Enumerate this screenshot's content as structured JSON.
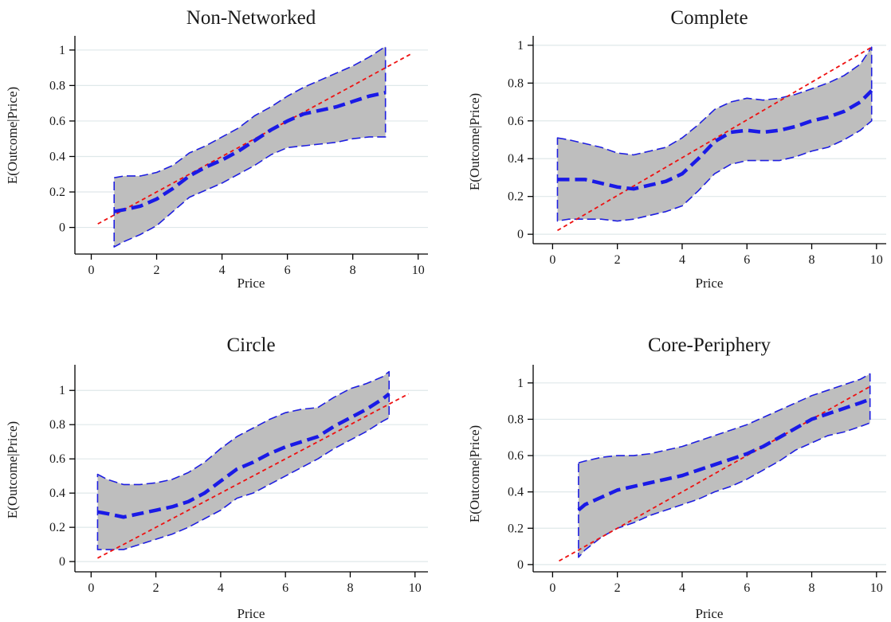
{
  "colors": {
    "band_fill": "#bebebe",
    "band_edge": "#1f1fe0",
    "fit_line": "#1a1ae6",
    "reference_line": "#ee1111",
    "gridline": "#dfe8ea",
    "axis": "#000000"
  },
  "chart_data": [
    {
      "type": "line",
      "title": "Non-Networked",
      "xlabel": "Price",
      "ylabel": "E(Outcome|Price)",
      "xlim": [
        -0.5,
        10.3
      ],
      "ylim": [
        -0.15,
        1.08
      ],
      "xticks": [
        0,
        2,
        4,
        6,
        8,
        10
      ],
      "yticks": [
        0,
        0.2,
        0.4,
        0.6,
        0.8,
        1
      ],
      "grid": true,
      "reference_line": {
        "x": [
          0.2,
          9.8
        ],
        "y": [
          0.02,
          0.98
        ]
      },
      "x": [
        0.7,
        1,
        1.5,
        2,
        2.5,
        3,
        3.5,
        4,
        4.5,
        5,
        5.5,
        6,
        6.5,
        7,
        7.5,
        8,
        8.5,
        9
      ],
      "fit": [
        0.09,
        0.1,
        0.12,
        0.16,
        0.22,
        0.29,
        0.34,
        0.38,
        0.43,
        0.49,
        0.55,
        0.6,
        0.64,
        0.66,
        0.68,
        0.71,
        0.74,
        0.76
      ],
      "lower": [
        -0.11,
        -0.08,
        -0.04,
        0.01,
        0.09,
        0.17,
        0.21,
        0.25,
        0.3,
        0.35,
        0.41,
        0.45,
        0.46,
        0.47,
        0.48,
        0.5,
        0.51,
        0.51
      ],
      "upper": [
        0.28,
        0.29,
        0.29,
        0.31,
        0.35,
        0.42,
        0.46,
        0.51,
        0.56,
        0.63,
        0.68,
        0.74,
        0.79,
        0.83,
        0.87,
        0.91,
        0.96,
        1.02
      ]
    },
    {
      "type": "line",
      "title": "Complete",
      "xlabel": "Price",
      "ylabel": "E(Outcome|Price)",
      "xlim": [
        -0.6,
        10.3
      ],
      "ylim": [
        -0.05,
        1.05
      ],
      "xticks": [
        0,
        2,
        4,
        6,
        8,
        10
      ],
      "yticks": [
        0,
        0.2,
        0.4,
        0.6,
        0.8,
        1
      ],
      "grid": true,
      "reference_line": {
        "x": [
          0.15,
          9.85
        ],
        "y": [
          0.02,
          0.99
        ]
      },
      "x": [
        0.15,
        0.5,
        1,
        1.5,
        2,
        2.5,
        3,
        3.5,
        4,
        4.5,
        5,
        5.5,
        6,
        6.5,
        7,
        7.5,
        8,
        8.5,
        9,
        9.5,
        9.85
      ],
      "fit": [
        0.29,
        0.29,
        0.29,
        0.27,
        0.25,
        0.24,
        0.26,
        0.28,
        0.32,
        0.4,
        0.49,
        0.54,
        0.55,
        0.54,
        0.55,
        0.57,
        0.6,
        0.62,
        0.65,
        0.7,
        0.76
      ],
      "lower": [
        0.07,
        0.08,
        0.08,
        0.08,
        0.07,
        0.08,
        0.1,
        0.12,
        0.15,
        0.23,
        0.32,
        0.37,
        0.39,
        0.39,
        0.39,
        0.41,
        0.44,
        0.46,
        0.5,
        0.55,
        0.6
      ],
      "upper": [
        0.51,
        0.5,
        0.48,
        0.46,
        0.43,
        0.42,
        0.44,
        0.46,
        0.51,
        0.58,
        0.66,
        0.7,
        0.72,
        0.71,
        0.72,
        0.74,
        0.77,
        0.8,
        0.84,
        0.9,
        0.99
      ]
    },
    {
      "type": "line",
      "title": "Circle",
      "xlabel": "Price",
      "ylabel": "E(Outcome|Price)",
      "xlim": [
        -0.5,
        10.4
      ],
      "ylim": [
        -0.06,
        1.15
      ],
      "xticks": [
        0,
        2,
        4,
        6,
        8,
        10
      ],
      "yticks": [
        0,
        0.2,
        0.4,
        0.6,
        0.8,
        1
      ],
      "grid": true,
      "reference_line": {
        "x": [
          0.2,
          9.8
        ],
        "y": [
          0.02,
          0.98
        ]
      },
      "x": [
        0.2,
        0.5,
        1,
        1.5,
        2,
        2.5,
        3,
        3.5,
        4,
        4.5,
        5,
        5.5,
        6,
        6.5,
        7,
        7.5,
        8,
        8.5,
        9,
        9.2
      ],
      "fit": [
        0.29,
        0.28,
        0.26,
        0.28,
        0.3,
        0.32,
        0.35,
        0.4,
        0.47,
        0.54,
        0.58,
        0.63,
        0.67,
        0.7,
        0.73,
        0.79,
        0.84,
        0.89,
        0.95,
        0.98
      ],
      "lower": [
        0.07,
        0.07,
        0.07,
        0.1,
        0.13,
        0.16,
        0.2,
        0.25,
        0.3,
        0.37,
        0.4,
        0.45,
        0.5,
        0.55,
        0.6,
        0.66,
        0.71,
        0.76,
        0.82,
        0.84
      ],
      "upper": [
        0.51,
        0.48,
        0.45,
        0.45,
        0.46,
        0.48,
        0.52,
        0.58,
        0.66,
        0.73,
        0.78,
        0.83,
        0.87,
        0.89,
        0.9,
        0.96,
        1.01,
        1.04,
        1.08,
        1.11
      ]
    },
    {
      "type": "line",
      "title": "Core-Periphery",
      "xlabel": "Price",
      "ylabel": "E(Outcome|Price)",
      "xlim": [
        -0.6,
        10.3
      ],
      "ylim": [
        -0.04,
        1.1
      ],
      "xticks": [
        0,
        2,
        4,
        6,
        8,
        10
      ],
      "yticks": [
        0,
        0.2,
        0.4,
        0.6,
        0.8,
        1
      ],
      "grid": true,
      "reference_line": {
        "x": [
          0.2,
          9.8
        ],
        "y": [
          0.02,
          0.98
        ]
      },
      "x": [
        0.8,
        1,
        1.5,
        2,
        2.5,
        3,
        3.5,
        4,
        4.5,
        5,
        5.5,
        6,
        6.5,
        7,
        7.5,
        8,
        8.5,
        9,
        9.5,
        9.8
      ],
      "fit": [
        0.3,
        0.33,
        0.37,
        0.41,
        0.43,
        0.45,
        0.47,
        0.49,
        0.52,
        0.55,
        0.58,
        0.61,
        0.65,
        0.7,
        0.75,
        0.8,
        0.83,
        0.86,
        0.89,
        0.91
      ],
      "lower": [
        0.04,
        0.08,
        0.15,
        0.2,
        0.23,
        0.27,
        0.3,
        0.33,
        0.36,
        0.4,
        0.43,
        0.47,
        0.52,
        0.57,
        0.63,
        0.67,
        0.71,
        0.73,
        0.76,
        0.78
      ],
      "upper": [
        0.56,
        0.57,
        0.59,
        0.6,
        0.6,
        0.61,
        0.63,
        0.65,
        0.68,
        0.71,
        0.74,
        0.77,
        0.81,
        0.85,
        0.89,
        0.93,
        0.96,
        0.99,
        1.02,
        1.05
      ]
    }
  ]
}
